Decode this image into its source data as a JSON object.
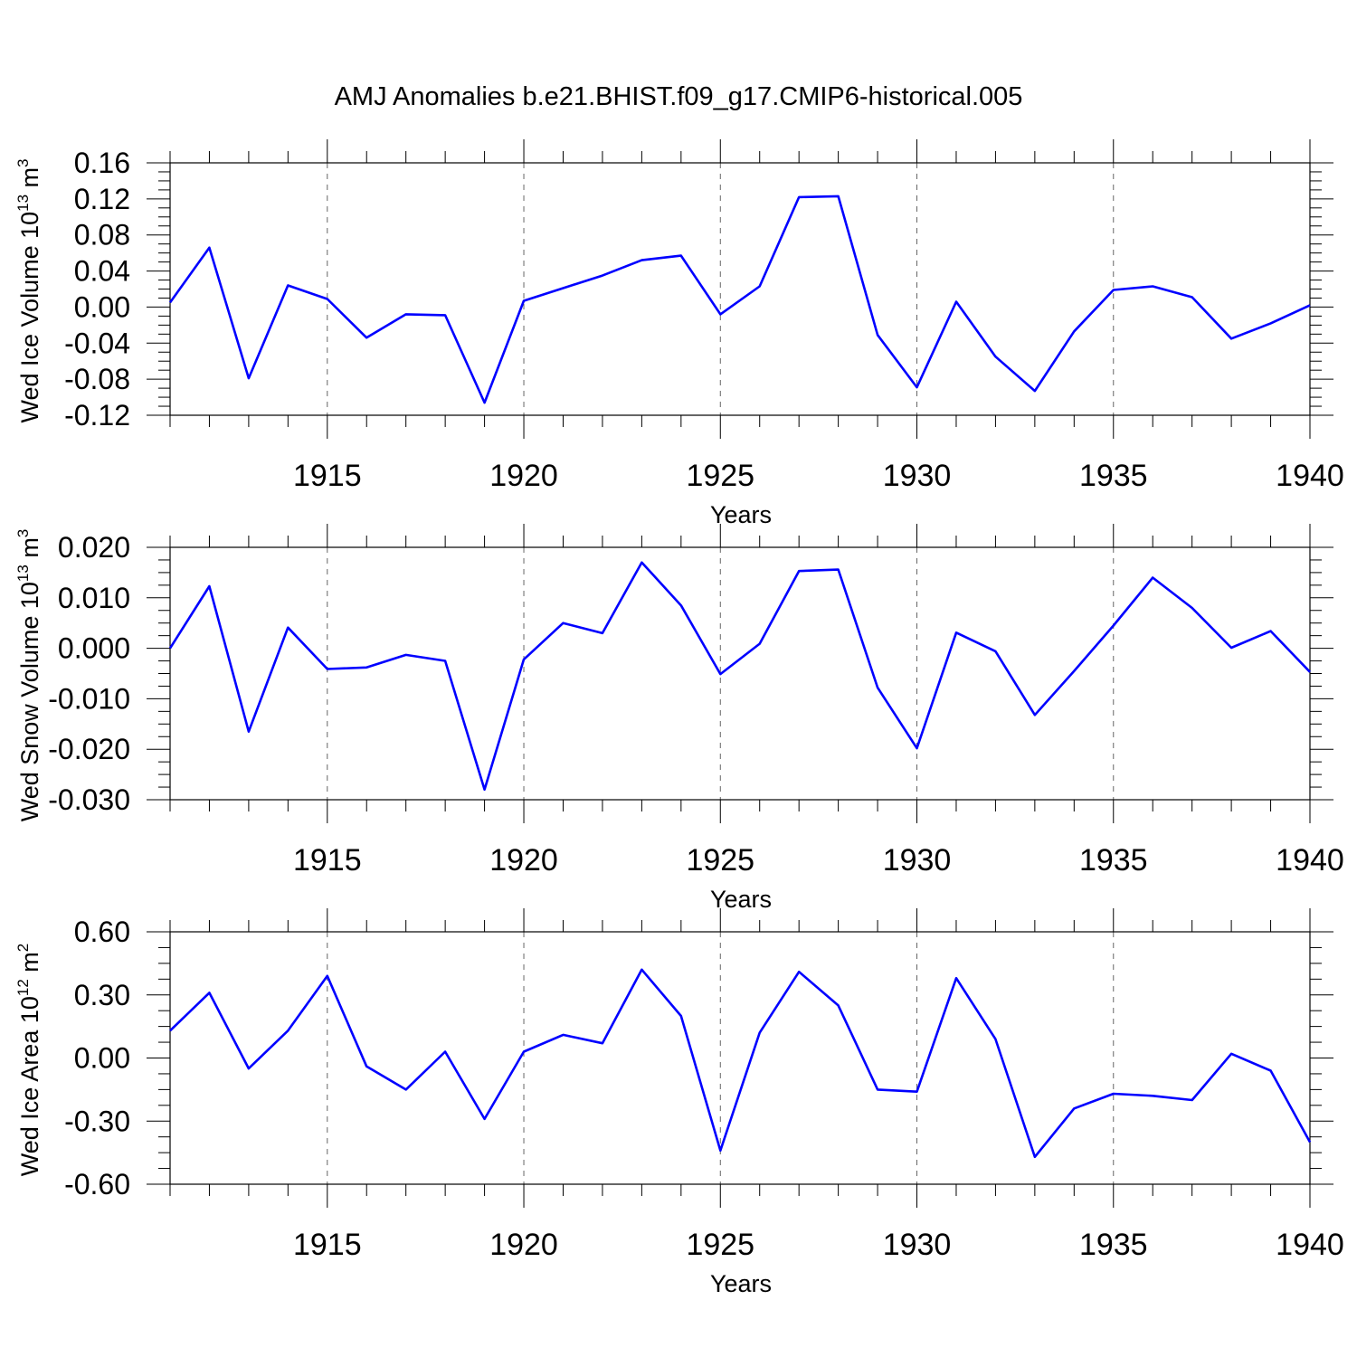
{
  "figure": {
    "title": "AMJ Anomalies b.e21.BHIST.f09_g17.CMIP6-historical.005",
    "line_color": "#0000ff"
  },
  "chart_data": [
    {
      "type": "line",
      "xlabel": "Years",
      "ylabel_prefix": "Wed Ice Volume 10",
      "ylabel_exp": "13",
      "ylabel_unit": "m",
      "ylabel_unit_exp": "3",
      "xlim": [
        1911,
        1940
      ],
      "ylim": [
        -0.12,
        0.16
      ],
      "xticks": [
        1915,
        1920,
        1925,
        1930,
        1935,
        1940
      ],
      "xtick_labels": [
        "1915",
        "1920",
        "1925",
        "1930",
        "1935",
        "1940"
      ],
      "yticks": [
        -0.12,
        -0.08,
        -0.04,
        0.0,
        0.04,
        0.08,
        0.12,
        0.16
      ],
      "ytick_labels": [
        "-0.12",
        "-0.08",
        "-0.04",
        "0.00",
        "0.04",
        "0.08",
        "0.12",
        "0.16"
      ],
      "grid": "vertical dashed at major x ticks",
      "x": [
        1911,
        1912,
        1913,
        1914,
        1915,
        1916,
        1917,
        1918,
        1919,
        1920,
        1921,
        1922,
        1923,
        1924,
        1925,
        1926,
        1927,
        1928,
        1929,
        1930,
        1931,
        1932,
        1933,
        1934,
        1935,
        1936,
        1937,
        1938,
        1939,
        1940
      ],
      "series": [
        {
          "values": [
            0.005,
            0.066,
            -0.079,
            0.024,
            0.009,
            -0.034,
            -0.008,
            -0.009,
            -0.106,
            0.007,
            0.021,
            0.035,
            0.052,
            0.057,
            -0.008,
            0.023,
            0.122,
            0.123,
            -0.031,
            -0.089,
            0.006,
            -0.055,
            -0.093,
            -0.027,
            0.019,
            0.023,
            0.011,
            -0.035,
            -0.018,
            0.002
          ]
        }
      ]
    },
    {
      "type": "line",
      "xlabel": "Years",
      "ylabel_prefix": "Wed Snow Volume 10",
      "ylabel_exp": "13",
      "ylabel_unit": "m",
      "ylabel_unit_exp": "3",
      "xlim": [
        1911,
        1940
      ],
      "ylim": [
        -0.03,
        0.02
      ],
      "xticks": [
        1915,
        1920,
        1925,
        1930,
        1935,
        1940
      ],
      "xtick_labels": [
        "1915",
        "1920",
        "1925",
        "1930",
        "1935",
        "1940"
      ],
      "yticks": [
        -0.03,
        -0.02,
        -0.01,
        0.0,
        0.01,
        0.02
      ],
      "ytick_labels": [
        "-0.030",
        "-0.020",
        "-0.010",
        "0.000",
        "0.010",
        "0.020"
      ],
      "grid": "vertical dashed at major x ticks",
      "x": [
        1911,
        1912,
        1913,
        1914,
        1915,
        1916,
        1917,
        1918,
        1919,
        1920,
        1921,
        1922,
        1923,
        1924,
        1925,
        1926,
        1927,
        1928,
        1929,
        1930,
        1931,
        1932,
        1933,
        1934,
        1935,
        1936,
        1937,
        1938,
        1939,
        1940
      ],
      "series": [
        {
          "values": [
            0.0,
            0.0123,
            -0.0165,
            0.0041,
            -0.0041,
            -0.0038,
            -0.0013,
            -0.0025,
            -0.028,
            -0.0022,
            0.005,
            0.003,
            0.017,
            0.0085,
            -0.0051,
            0.0009,
            0.0153,
            0.0156,
            -0.0078,
            -0.0198,
            0.0031,
            -0.0006,
            -0.0132,
            -0.0045,
            0.0045,
            0.014,
            0.008,
            0.0001,
            0.0034,
            -0.0047
          ]
        }
      ]
    },
    {
      "type": "line",
      "xlabel": "Years",
      "ylabel_prefix": "Wed Ice Area 10",
      "ylabel_exp": "12",
      "ylabel_unit": "m",
      "ylabel_unit_exp": "2",
      "xlim": [
        1911,
        1940
      ],
      "ylim": [
        -0.6,
        0.6
      ],
      "xticks": [
        1915,
        1920,
        1925,
        1930,
        1935,
        1940
      ],
      "xtick_labels": [
        "1915",
        "1920",
        "1925",
        "1930",
        "1935",
        "1940"
      ],
      "yticks": [
        -0.6,
        -0.3,
        0.0,
        0.3,
        0.6
      ],
      "ytick_labels": [
        "-0.60",
        "-0.30",
        "0.00",
        "0.30",
        "0.60"
      ],
      "grid": "vertical dashed at major x ticks",
      "x": [
        1911,
        1912,
        1913,
        1914,
        1915,
        1916,
        1917,
        1918,
        1919,
        1920,
        1921,
        1922,
        1923,
        1924,
        1925,
        1926,
        1927,
        1928,
        1929,
        1930,
        1931,
        1932,
        1933,
        1934,
        1935,
        1936,
        1937,
        1938,
        1939,
        1940
      ],
      "series": [
        {
          "values": [
            0.13,
            0.31,
            -0.05,
            0.13,
            0.39,
            -0.04,
            -0.15,
            0.03,
            -0.29,
            0.03,
            0.11,
            0.07,
            0.42,
            0.2,
            -0.44,
            0.12,
            0.41,
            0.25,
            -0.15,
            -0.16,
            0.38,
            0.09,
            -0.47,
            -0.24,
            -0.17,
            -0.18,
            -0.2,
            0.02,
            -0.06,
            -0.4
          ]
        }
      ]
    }
  ]
}
